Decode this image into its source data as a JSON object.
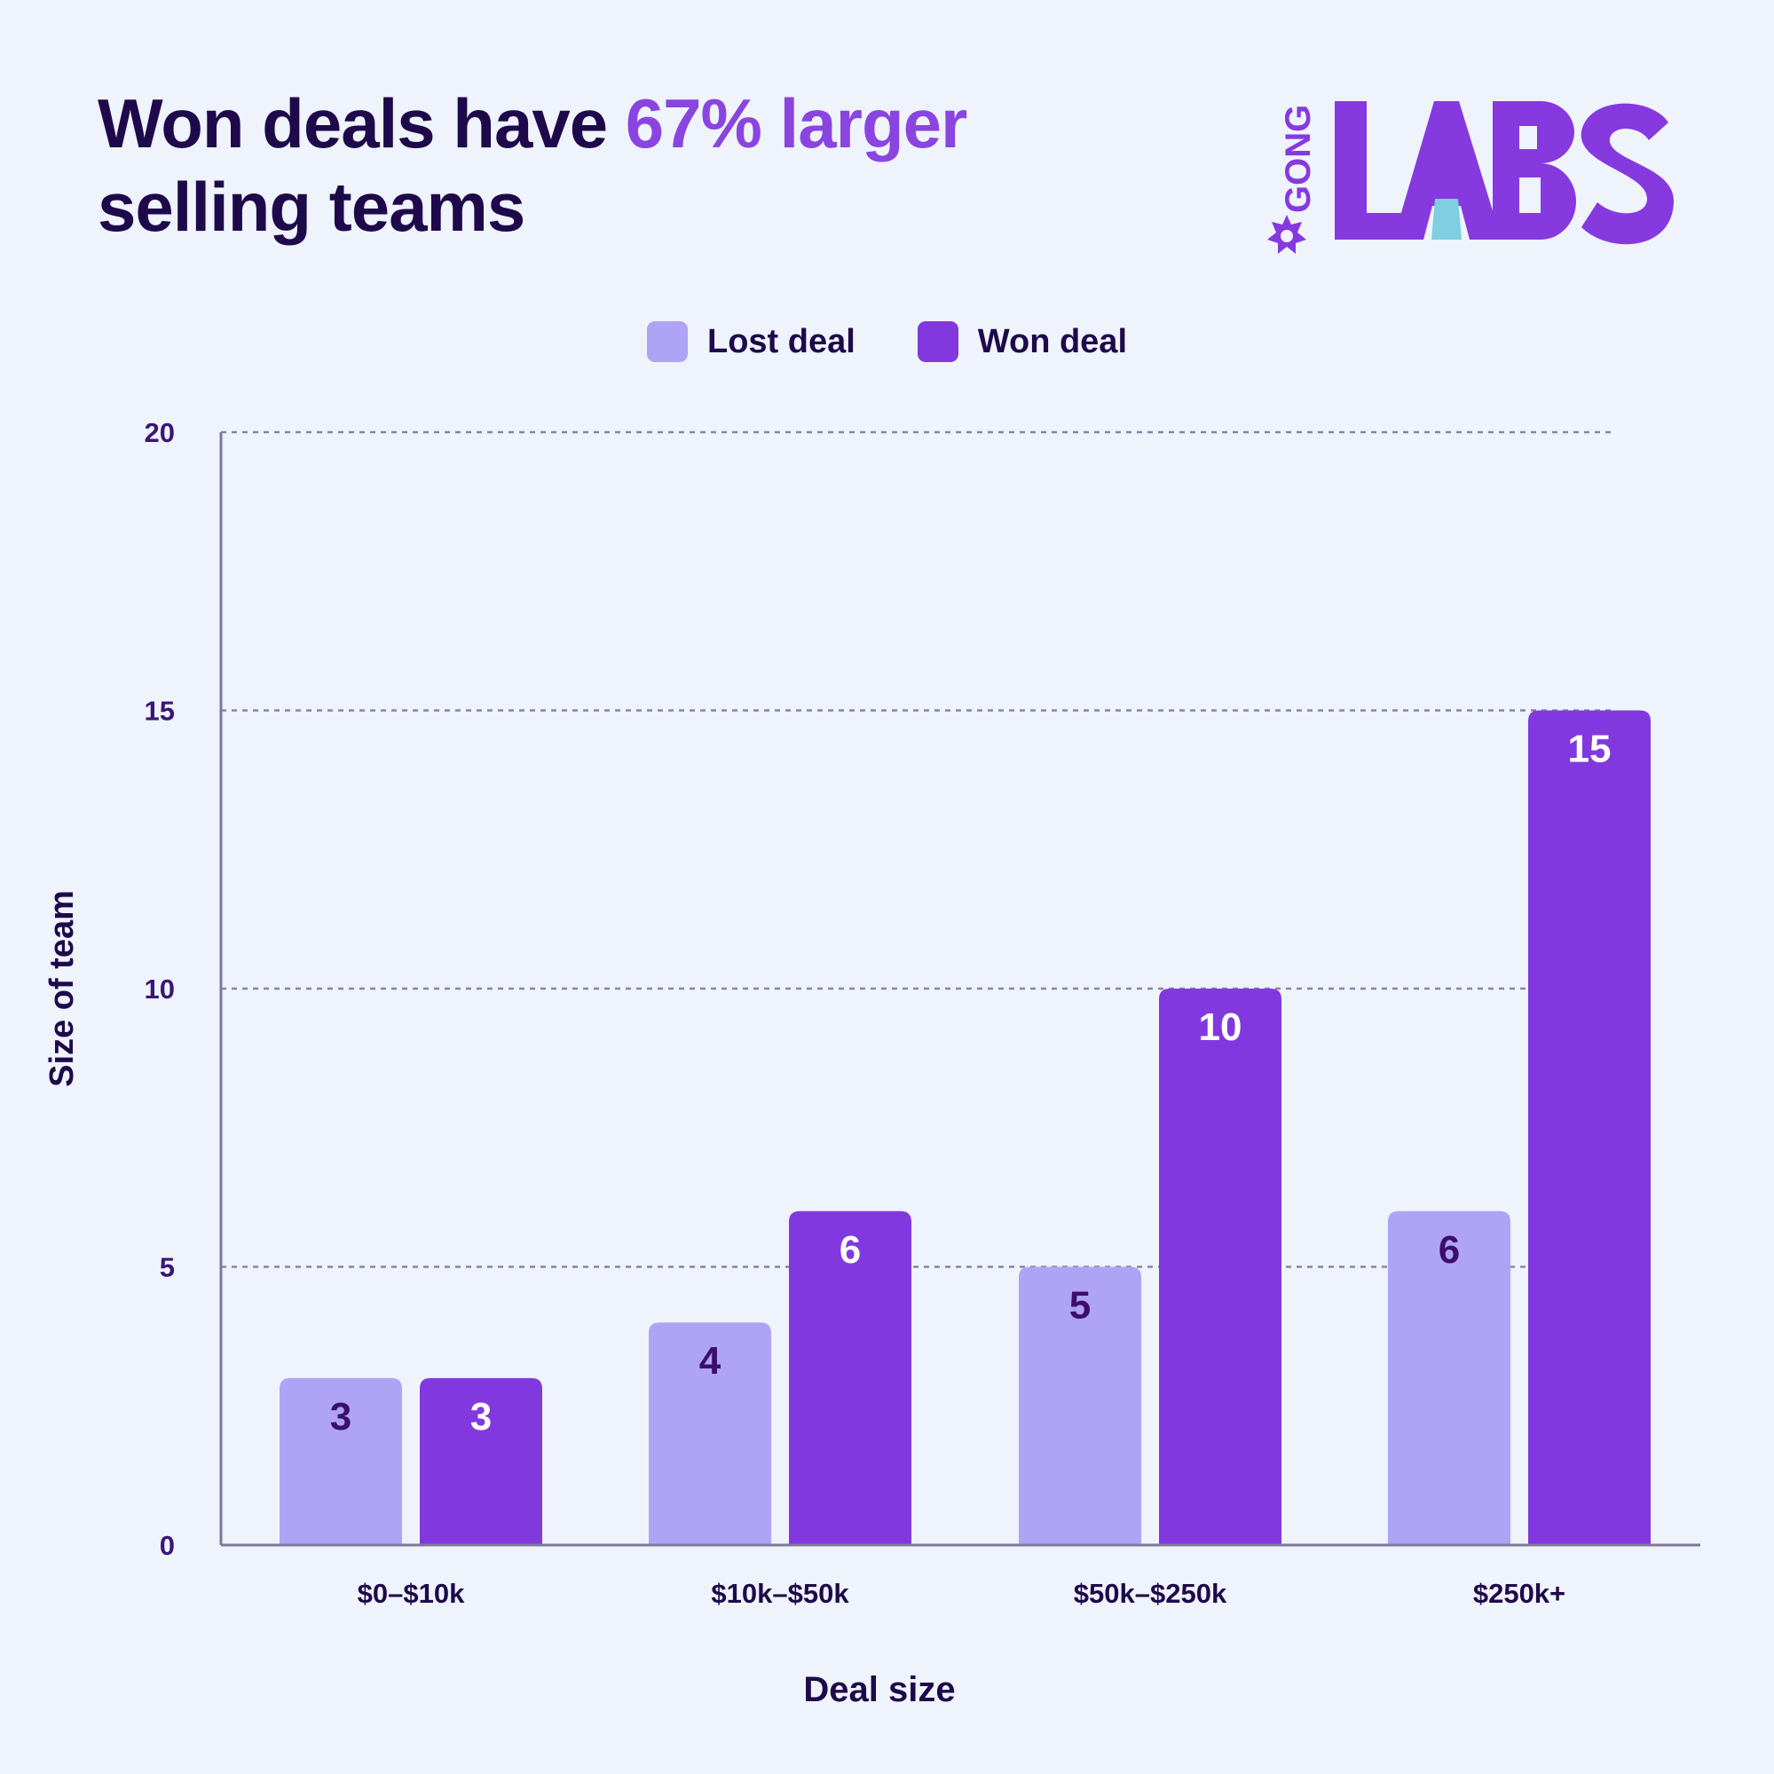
{
  "header": {
    "title_part1": "Won deals have ",
    "title_highlight": "67% larger",
    "title_part2": "selling teams"
  },
  "logo": {
    "small_text": "GONG",
    "big_text": "LABS"
  },
  "colors": {
    "lost": "#afa3f6",
    "won": "#8139df",
    "grid": "#8a83a8",
    "axis": "#7f7898",
    "lost_label": "#3c0f6b",
    "won_label": "#ffffff",
    "highlight": "#8a45e0",
    "logo": "#8639df",
    "logo_accent": "#7fcfe0"
  },
  "chart_data": {
    "type": "bar",
    "categories": [
      "$0–$10k",
      "$10k–$50k",
      "$50k–$250k",
      "$250k+"
    ],
    "series": [
      {
        "name": "Lost deal",
        "values": [
          3,
          4,
          5,
          6
        ]
      },
      {
        "name": "Won deal",
        "values": [
          3,
          6,
          10,
          15
        ]
      }
    ],
    "xlabel": "Deal size",
    "ylabel": "Size of team",
    "ylim": [
      0,
      20
    ],
    "yticks": [
      0,
      5,
      10,
      15,
      20
    ],
    "grid": true,
    "legend": "top-center"
  }
}
